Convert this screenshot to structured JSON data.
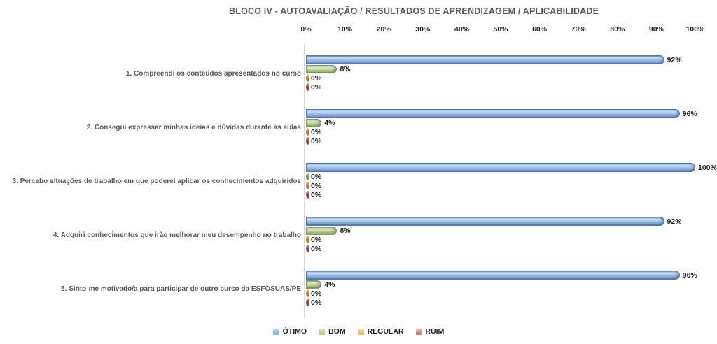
{
  "chart_data": {
    "type": "bar",
    "orientation": "horizontal",
    "title": "BLOCO IV - AUTOAVALIAÇÃO / RESULTADOS DE APRENDIZAGEM / APLICABILIDADE",
    "categories": [
      "1. Compreendi os conteúdos apresentados no curso",
      "2. Consegui expressar minhas ideias e dúvidas durante as aulas",
      "3. Percebo situações de trabalho em que poderei aplicar os conhecimentos adquiridos",
      "4. Adquiri conhecimentos que irão melhorar meu desempenho no trabalho",
      "5. Sinto-me motivado/a para participar de outro curso da ESFOSUAS/PE"
    ],
    "series": [
      {
        "name": "ÓTIMO",
        "values": [
          92,
          96,
          100,
          92,
          96
        ],
        "color": "#8FB2E0",
        "light": "#CEE0F5",
        "shadow": "#7096CB",
        "border": "#4E79AE"
      },
      {
        "name": "BOM",
        "values": [
          8,
          4,
          0,
          8,
          4
        ],
        "color": "#B6CC8E",
        "light": "#E0EAC9",
        "shadow": "#9CB56F",
        "border": "#7E9B51"
      },
      {
        "name": "REGULAR",
        "values": [
          0,
          0,
          0,
          0,
          0
        ],
        "color": "#F4B97D",
        "light": "#FBE0C3",
        "shadow": "#D99E5F",
        "border": "#B07C3F"
      },
      {
        "name": "RUIM",
        "values": [
          0,
          0,
          0,
          0,
          0
        ],
        "color": "#C98680",
        "light": "#EBC8C4",
        "shadow": "#AF6760",
        "border": "#8E4540"
      }
    ],
    "value_labels": [
      [
        "92%",
        "8%",
        "0%",
        "0%"
      ],
      [
        "96%",
        "4%",
        "0%",
        "0%"
      ],
      [
        "100%",
        "0%",
        "0%",
        "0%"
      ],
      [
        "92%",
        "8%",
        "0%",
        "0%"
      ],
      [
        "96%",
        "4%",
        "0%",
        "0%"
      ]
    ],
    "x_ticks": [
      "0%",
      "10%",
      "20%",
      "30%",
      "40%",
      "50%",
      "60%",
      "70%",
      "80%",
      "90%",
      "100%"
    ],
    "xlim": [
      0,
      100
    ],
    "grid": false,
    "legend_position": "bottom",
    "title_color": "#595959",
    "text_color": "#1f1f1f",
    "category_label_color": "#595959",
    "axis_line_color": "#d9d9d9"
  }
}
